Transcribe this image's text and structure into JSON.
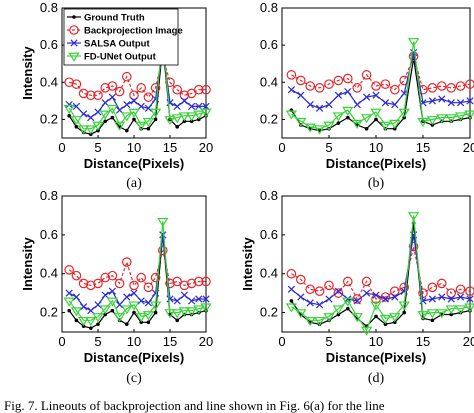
{
  "caption": "Fig. 7.   Lineouts of backprojection and line shown in Fig. 6(a) for the line",
  "chart_data": [
    {
      "type": "line",
      "panel_label": "(a)",
      "xlabel": "Distance(Pixels)",
      "ylabel": "Intensity",
      "xlim": [
        0,
        20
      ],
      "ylim": [
        0.1,
        0.8
      ],
      "xticks": [
        0,
        5,
        10,
        15,
        20
      ],
      "yticks": [
        0.2,
        0.4,
        0.6,
        0.8
      ],
      "legend_position": "top-left",
      "x": [
        1,
        2,
        3,
        4,
        5,
        6,
        7,
        8,
        9,
        10,
        11,
        12,
        13,
        14,
        15,
        16,
        17,
        18,
        19,
        20
      ],
      "series": [
        {
          "name": "Ground Truth",
          "color": "#000000",
          "marker": "dot",
          "values": [
            0.22,
            0.16,
            0.13,
            0.12,
            0.14,
            0.19,
            0.21,
            0.16,
            0.14,
            0.2,
            0.15,
            0.15,
            0.2,
            0.6,
            0.2,
            0.16,
            0.19,
            0.19,
            0.2,
            0.22
          ]
        },
        {
          "name": "Backprojection Image",
          "color": "#e8262a",
          "marker": "circle",
          "values": [
            0.4,
            0.39,
            0.34,
            0.33,
            0.33,
            0.37,
            0.38,
            0.35,
            0.43,
            0.33,
            0.37,
            0.32,
            0.37,
            0.54,
            0.4,
            0.36,
            0.33,
            0.34,
            0.36,
            0.36
          ]
        },
        {
          "name": "SALSA Output",
          "color": "#2b2bd8",
          "marker": "x",
          "values": [
            0.28,
            0.27,
            0.23,
            0.21,
            0.24,
            0.29,
            0.32,
            0.25,
            0.28,
            0.3,
            0.27,
            0.26,
            0.31,
            0.59,
            0.29,
            0.27,
            0.3,
            0.27,
            0.27,
            0.27
          ]
        },
        {
          "name": "FD-UNet Output",
          "color": "#39d339",
          "marker": "triangle",
          "values": [
            0.26,
            0.2,
            0.15,
            0.15,
            0.17,
            0.23,
            0.26,
            0.17,
            0.22,
            0.24,
            0.17,
            0.19,
            0.24,
            0.66,
            0.2,
            0.21,
            0.22,
            0.22,
            0.23,
            0.24
          ]
        }
      ]
    },
    {
      "type": "line",
      "panel_label": "(b)",
      "xlabel": "Distance(Pixels)",
      "ylabel": "",
      "xlim": [
        0,
        20
      ],
      "ylim": [
        0.1,
        0.8
      ],
      "xticks": [
        0,
        5,
        10,
        15,
        20
      ],
      "yticks": [
        0.2,
        0.4,
        0.6,
        0.8
      ],
      "x": [
        1,
        2,
        3,
        4,
        5,
        6,
        7,
        8,
        9,
        10,
        11,
        12,
        13,
        14,
        15,
        16,
        17,
        18,
        19,
        20
      ],
      "series": [
        {
          "name": "Ground Truth",
          "color": "#000000",
          "marker": "dot",
          "values": [
            0.25,
            0.17,
            0.15,
            0.14,
            0.15,
            0.18,
            0.21,
            0.17,
            0.15,
            0.2,
            0.15,
            0.15,
            0.21,
            0.53,
            0.19,
            0.17,
            0.19,
            0.19,
            0.2,
            0.21
          ]
        },
        {
          "name": "Backprojection Image",
          "color": "#e8262a",
          "marker": "circle",
          "values": [
            0.44,
            0.41,
            0.38,
            0.37,
            0.39,
            0.41,
            0.42,
            0.37,
            0.44,
            0.38,
            0.39,
            0.36,
            0.41,
            0.54,
            0.36,
            0.37,
            0.38,
            0.37,
            0.38,
            0.39
          ]
        },
        {
          "name": "SALSA Output",
          "color": "#2b2bd8",
          "marker": "x",
          "values": [
            0.36,
            0.33,
            0.28,
            0.26,
            0.28,
            0.33,
            0.35,
            0.28,
            0.32,
            0.33,
            0.29,
            0.28,
            0.34,
            0.56,
            0.29,
            0.3,
            0.31,
            0.29,
            0.29,
            0.3
          ]
        },
        {
          "name": "FD-UNet Output",
          "color": "#39d339",
          "marker": "triangle",
          "values": [
            0.23,
            0.19,
            0.16,
            0.15,
            0.17,
            0.22,
            0.25,
            0.18,
            0.21,
            0.24,
            0.17,
            0.18,
            0.24,
            0.62,
            0.19,
            0.2,
            0.21,
            0.21,
            0.22,
            0.23
          ]
        }
      ]
    },
    {
      "type": "line",
      "panel_label": "(c)",
      "xlabel": "Distance(Pixels)",
      "ylabel": "Intensity",
      "xlim": [
        0,
        20
      ],
      "ylim": [
        0.1,
        0.8
      ],
      "xticks": [
        0,
        5,
        10,
        15,
        20
      ],
      "yticks": [
        0.2,
        0.4,
        0.6,
        0.8
      ],
      "x": [
        1,
        2,
        3,
        4,
        5,
        6,
        7,
        8,
        9,
        10,
        11,
        12,
        13,
        14,
        15,
        16,
        17,
        18,
        19,
        20
      ],
      "series": [
        {
          "name": "Ground Truth",
          "color": "#000000",
          "marker": "dot",
          "values": [
            0.21,
            0.16,
            0.13,
            0.12,
            0.14,
            0.19,
            0.21,
            0.16,
            0.14,
            0.2,
            0.15,
            0.15,
            0.2,
            0.6,
            0.19,
            0.16,
            0.19,
            0.19,
            0.2,
            0.21
          ]
        },
        {
          "name": "Backprojection Image",
          "color": "#e8262a",
          "marker": "circle",
          "values": [
            0.42,
            0.39,
            0.35,
            0.34,
            0.35,
            0.38,
            0.39,
            0.35,
            0.46,
            0.34,
            0.38,
            0.33,
            0.38,
            0.52,
            0.35,
            0.36,
            0.34,
            0.35,
            0.36,
            0.36
          ]
        },
        {
          "name": "SALSA Output",
          "color": "#2b2bd8",
          "marker": "x",
          "values": [
            0.3,
            0.28,
            0.23,
            0.21,
            0.24,
            0.29,
            0.31,
            0.24,
            0.28,
            0.3,
            0.26,
            0.25,
            0.3,
            0.6,
            0.27,
            0.26,
            0.29,
            0.26,
            0.27,
            0.27
          ]
        },
        {
          "name": "FD-UNet Output",
          "color": "#39d339",
          "marker": "triangle",
          "values": [
            0.26,
            0.21,
            0.16,
            0.16,
            0.18,
            0.22,
            0.26,
            0.18,
            0.22,
            0.24,
            0.18,
            0.19,
            0.24,
            0.67,
            0.2,
            0.2,
            0.21,
            0.21,
            0.22,
            0.23
          ]
        }
      ]
    },
    {
      "type": "line",
      "panel_label": "(d)",
      "xlabel": "Distance(Pixels)",
      "ylabel": "Intensity",
      "xlim": [
        0,
        20
      ],
      "ylim": [
        0.1,
        0.8
      ],
      "xticks": [
        0,
        5,
        10,
        15,
        20
      ],
      "yticks": [
        0.2,
        0.4,
        0.6,
        0.8
      ],
      "x": [
        1,
        2,
        3,
        4,
        5,
        6,
        7,
        8,
        9,
        10,
        11,
        12,
        13,
        14,
        15,
        16,
        17,
        18,
        19,
        20
      ],
      "series": [
        {
          "name": "Ground Truth",
          "color": "#000000",
          "marker": "dot",
          "values": [
            0.26,
            0.19,
            0.15,
            0.14,
            0.16,
            0.19,
            0.22,
            0.17,
            0.13,
            0.18,
            0.14,
            0.15,
            0.2,
            0.66,
            0.17,
            0.16,
            0.19,
            0.19,
            0.2,
            0.21
          ]
        },
        {
          "name": "Backprojection Image",
          "color": "#e8262a",
          "marker": "circle",
          "values": [
            0.4,
            0.37,
            0.32,
            0.31,
            0.34,
            0.3,
            0.36,
            0.27,
            0.36,
            0.27,
            0.28,
            0.31,
            0.33,
            0.54,
            0.3,
            0.33,
            0.35,
            0.3,
            0.32,
            0.31
          ]
        },
        {
          "name": "SALSA Output",
          "color": "#2b2bd8",
          "marker": "x",
          "values": [
            0.32,
            0.28,
            0.25,
            0.24,
            0.27,
            0.31,
            0.27,
            0.26,
            0.3,
            0.29,
            0.27,
            0.28,
            0.31,
            0.6,
            0.26,
            0.27,
            0.28,
            0.27,
            0.28,
            0.27
          ]
        },
        {
          "name": "FD-UNet Output",
          "color": "#39d339",
          "marker": "triangle",
          "values": [
            0.23,
            0.2,
            0.16,
            0.16,
            0.18,
            0.22,
            0.26,
            0.18,
            0.11,
            0.24,
            0.17,
            0.18,
            0.24,
            0.7,
            0.19,
            0.2,
            0.2,
            0.22,
            0.22,
            0.23
          ]
        }
      ]
    }
  ]
}
